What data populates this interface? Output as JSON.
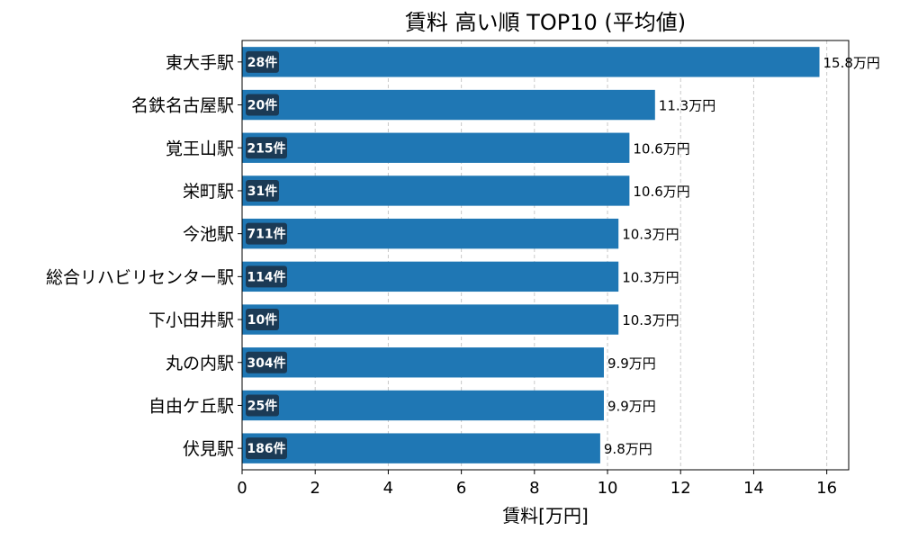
{
  "chart_data": {
    "type": "bar",
    "orientation": "horizontal",
    "title": "賃料 高い順 TOP10 (平均値)",
    "xlabel": "賃料[万円]",
    "ylabel": "",
    "xlim": [
      0,
      16.6
    ],
    "xticks": [
      0,
      2,
      4,
      6,
      8,
      10,
      12,
      14,
      16
    ],
    "grid": "x-dashed",
    "categories": [
      "東大手駅",
      "名鉄名古屋駅",
      "覚王山駅",
      "栄町駅",
      "今池駅",
      "総合リハビリセンター駅",
      "下小田井駅",
      "丸の内駅",
      "自由ケ丘駅",
      "伏見駅"
    ],
    "values": [
      15.8,
      11.3,
      10.6,
      10.6,
      10.3,
      10.3,
      10.3,
      9.9,
      9.9,
      9.8
    ],
    "value_labels": [
      "15.8万円",
      "11.3万円",
      "10.6万円",
      "10.6万円",
      "10.3万円",
      "10.3万円",
      "10.3万円",
      "9.9万円",
      "9.9万円",
      "9.8万円"
    ],
    "count_labels": [
      "28件",
      "20件",
      "215件",
      "31件",
      "711件",
      "114件",
      "10件",
      "304件",
      "25件",
      "186件"
    ],
    "bar_color": "#1f77b4",
    "count_badge_color": "#1b3a55"
  }
}
